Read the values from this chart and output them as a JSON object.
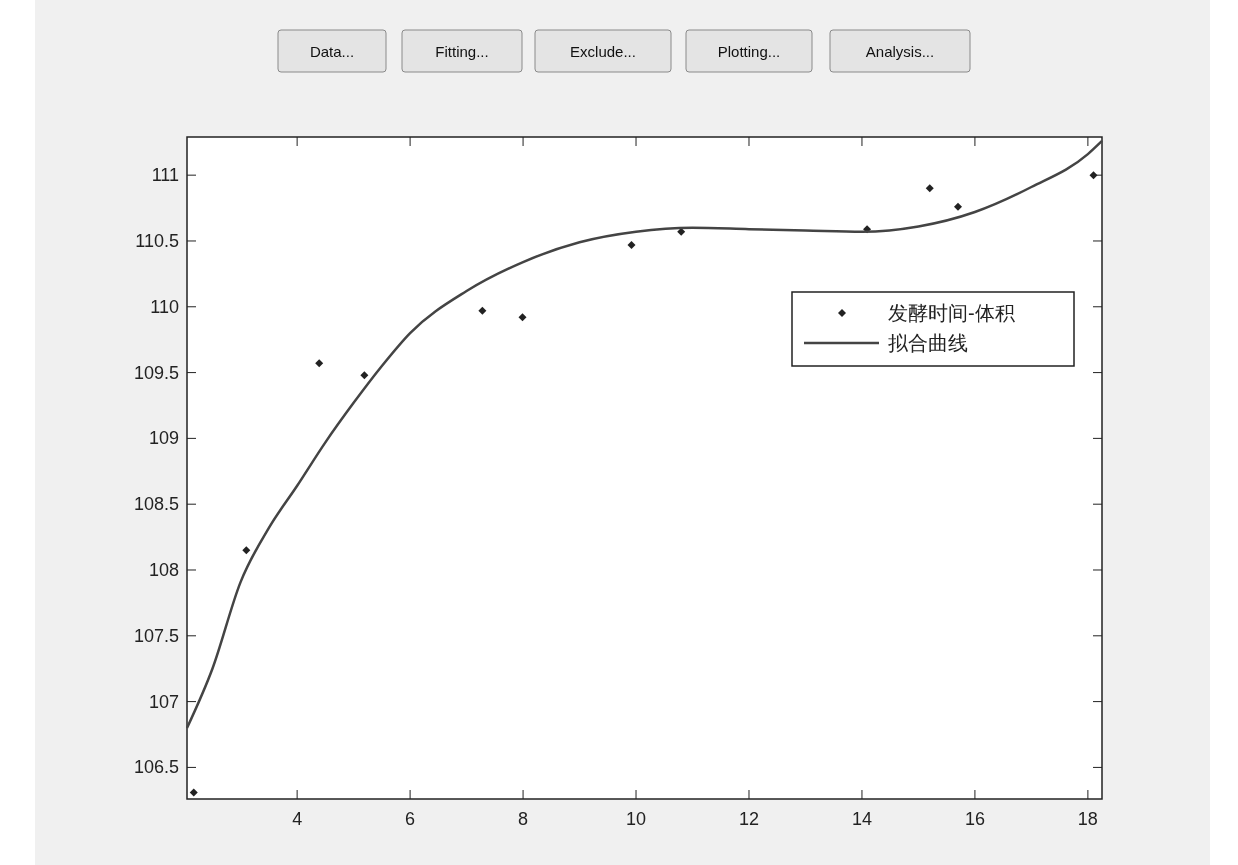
{
  "chart_data": {
    "type": "scatter",
    "annotations": [
      "Data...",
      "Fitting...",
      "Exclude...",
      "Plotting...",
      "Analysis..."
    ],
    "xlim": [
      2.05,
      18.25
    ],
    "xticks": [
      4,
      6,
      8,
      10,
      12,
      14,
      16,
      18
    ],
    "ylim": [
      106.26,
      111.29
    ],
    "yticks": [
      106.5,
      107,
      107.5,
      108,
      108.5,
      109,
      109.5,
      110,
      110.5,
      111
    ],
    "grid": false,
    "legend": "right",
    "marker": "diamond",
    "series": [
      {
        "name": "发酵时间-体积",
        "color": "#222222",
        "x": [
          2.17,
          3.1,
          4.39,
          5.19,
          7.28,
          7.99,
          9.92,
          10.8,
          14.09,
          15.2,
          15.7,
          18.1
        ],
        "values": [
          106.31,
          108.15,
          109.57,
          109.48,
          109.97,
          109.92,
          110.47,
          110.57,
          110.59,
          110.9,
          110.76,
          111.0
        ]
      },
      {
        "name": "拟合曲线",
        "type": "line",
        "color": "#444444",
        "line_style": "solid",
        "marker": "none",
        "x": [
          2.05,
          2.5,
          3,
          3.5,
          4,
          4.5,
          5,
          5.5,
          6,
          7,
          8,
          9,
          10,
          11,
          12,
          13,
          14,
          15,
          16,
          17,
          18,
          18.25
        ],
        "values": [
          106.8,
          107.25,
          107.91,
          108.32,
          108.64,
          108.97,
          109.27,
          109.55,
          109.8,
          110.12,
          110.34,
          110.49,
          110.57,
          110.6,
          110.59,
          110.58,
          110.57,
          110.61,
          110.72,
          110.91,
          111.16,
          111.26
        ]
      }
    ]
  }
}
